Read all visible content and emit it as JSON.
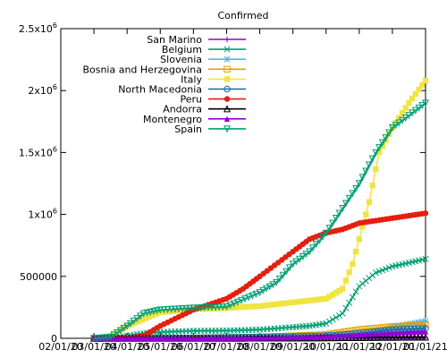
{
  "chart_data": {
    "type": "line",
    "title": "Confirmed",
    "xlabel": "",
    "ylabel": "",
    "x_ticks": [
      "02/01/20",
      "03/01/20",
      "04/01/20",
      "05/01/20",
      "06/01/20",
      "07/01/20",
      "08/01/20",
      "09/01/20",
      "10/01/20",
      "11/01/20",
      "12/01/20",
      "01/01/21"
    ],
    "x_tick_index": [
      0,
      1,
      2,
      3,
      4,
      5,
      6,
      7,
      8,
      9,
      10,
      11
    ],
    "xlim": [
      0,
      11
    ],
    "y_ticks": [
      {
        "value": 0,
        "label": "0"
      },
      {
        "value": 500000,
        "label": "500000"
      },
      {
        "value": 1000000,
        "label": "1x10^6"
      },
      {
        "value": 1500000,
        "label": "1.5x10^6"
      },
      {
        "value": 2000000,
        "label": "2x10^6"
      },
      {
        "value": 2500000,
        "label": "2.5x10^6"
      }
    ],
    "ylim": [
      0,
      2500000
    ],
    "grid": false,
    "legend_position": "top-left",
    "series": [
      {
        "name": "San Marino",
        "color": "#9400d3",
        "marker": "plus",
        "x": [
          1,
          3,
          5,
          7,
          9,
          10,
          11
        ],
        "y": [
          0,
          600,
          700,
          700,
          1500,
          2000,
          2500
        ]
      },
      {
        "name": "Belgium",
        "color": "#009e73",
        "marker": "cross",
        "x": [
          1,
          1.5,
          2,
          2.5,
          3,
          4,
          5,
          6,
          7,
          7.5,
          8,
          8.5,
          9,
          9.5,
          10,
          10.5,
          11
        ],
        "y": [
          0,
          1000,
          20000,
          40000,
          50000,
          60000,
          62000,
          70000,
          90000,
          100000,
          120000,
          200000,
          420000,
          530000,
          580000,
          610000,
          640000
        ]
      },
      {
        "name": "Slovenia",
        "color": "#56b4e9",
        "marker": "asterisk",
        "x": [
          1,
          7,
          8,
          9,
          10,
          11
        ],
        "y": [
          0,
          1000,
          2000,
          20000,
          90000,
          140000
        ]
      },
      {
        "name": "Bosnia and Herzegovina",
        "color": "#e69f00",
        "marker": "open-square",
        "x": [
          1,
          4,
          6,
          7,
          8,
          9,
          10,
          11
        ],
        "y": [
          0,
          2000,
          10000,
          20000,
          30000,
          70000,
          95000,
          110000
        ]
      },
      {
        "name": "Italy",
        "color": "#f0e442",
        "marker": "filled-square",
        "x": [
          1,
          1.4,
          2,
          3,
          4,
          5,
          6,
          7,
          8,
          8.5,
          8.8,
          9,
          9.3,
          9.6,
          10,
          10.5,
          11
        ],
        "y": [
          0,
          2000,
          100000,
          210000,
          235000,
          245000,
          260000,
          290000,
          320000,
          400000,
          600000,
          800000,
          1100000,
          1500000,
          1700000,
          1900000,
          2080000
        ]
      },
      {
        "name": "North Macedonia",
        "color": "#0072b2",
        "marker": "open-circle",
        "x": [
          1,
          3,
          4,
          5,
          6,
          7,
          8,
          9,
          10,
          11
        ],
        "y": [
          0,
          1000,
          3000,
          8000,
          12000,
          15000,
          22000,
          40000,
          70000,
          80000
        ]
      },
      {
        "name": "Peru",
        "color": "#e51e10",
        "marker": "filled-circle",
        "x": [
          1,
          2,
          2.5,
          3,
          4,
          5,
          5.5,
          6,
          7,
          7.5,
          8,
          8.5,
          9,
          9.5,
          10,
          10.5,
          11
        ],
        "y": [
          0,
          1000,
          20000,
          100000,
          230000,
          320000,
          400000,
          500000,
          700000,
          800000,
          850000,
          880000,
          930000,
          950000,
          970000,
          990000,
          1010000
        ]
      },
      {
        "name": "Andorra",
        "color": "#000000",
        "marker": "open-triangle",
        "x": [
          1,
          3,
          5,
          7,
          9,
          10,
          11
        ],
        "y": [
          0,
          700,
          900,
          1200,
          6000,
          8000,
          9000
        ]
      },
      {
        "name": "Montenegro",
        "color": "#9400d3",
        "marker": "filled-triangle",
        "x": [
          1,
          3,
          4,
          5,
          6,
          7,
          8,
          9,
          10,
          11
        ],
        "y": [
          0,
          300,
          400,
          2000,
          4000,
          8000,
          15000,
          30000,
          45000,
          55000
        ]
      },
      {
        "name": "Spain",
        "color": "#009e73",
        "marker": "open-inverted-triangle",
        "x": [
          1,
          1.5,
          2,
          2.5,
          3,
          4,
          5,
          6,
          6.5,
          7,
          7.5,
          8,
          8.5,
          9,
          9.5,
          10,
          10.5,
          11
        ],
        "y": [
          0,
          10000,
          100000,
          200000,
          230000,
          245000,
          255000,
          370000,
          450000,
          600000,
          700000,
          850000,
          1050000,
          1250000,
          1500000,
          1700000,
          1800000,
          1900000
        ]
      }
    ]
  }
}
